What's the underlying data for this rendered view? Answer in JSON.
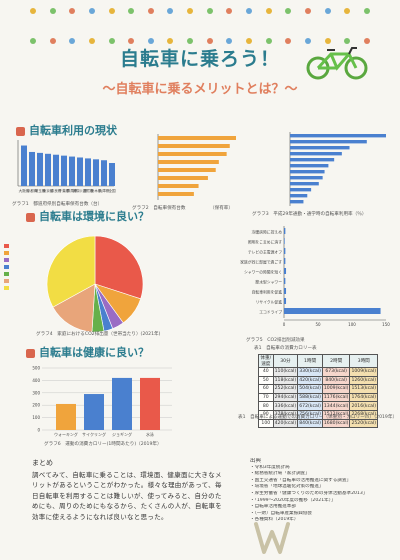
{
  "title": "自転車に乗ろう！",
  "subtitle": "～自転車に乗るメリットとは？～",
  "sections": {
    "usage": "自転車利用の現状",
    "environment": "自転車は環境に良い？",
    "health": "自転車は健康に良い？"
  },
  "colors": {
    "title": "#2b7c8e",
    "subtitle": "#e07f5e",
    "bar_blue": "#4a80cf",
    "bar_orange": "#f0a43c",
    "bar_red": "#e9594a",
    "frame_green": "#66c04a"
  },
  "dot_colors": [
    "#e7b53c",
    "#7cc26b",
    "#e07f5e",
    "#6aa7d8"
  ],
  "icons": [
    "bicycle-icon",
    "section-marker-icon"
  ],
  "captions": {
    "g1": "グラフ1　都道府県別自転車保有台数（台）",
    "g2a": "グラフ2　自転車保有台数",
    "g2b": "（保有率）",
    "g3": "グラフ3　平成29年通勤・通学時の自転車利用率（％）",
    "g4": "グラフ4　家庭におけるCO2排出量（世帯当たり）(2021年)",
    "g5": "グラフ5　CO2排出削減効果",
    "g6": "グラフ6　運動の消費カロリー(1時間あたり)（2019年）",
    "table": "表1　自転車の消費カロリー表",
    "table_note": "表1　自転車による運動での消費カロリー（体重別・カロリー/h）（2019年）"
  },
  "chart_data": [
    {
      "type": "bar",
      "title": "",
      "xlabel": "",
      "ylabel": "",
      "categories": [
        "大阪府",
        "京都府",
        "埼玉県",
        "東京都",
        "奈良県",
        "千葉県",
        "群馬県",
        "神奈川県",
        "滋賀県",
        "栃木県",
        "兵庫県",
        "全国"
      ],
      "values": [
        88,
        74,
        72,
        70,
        68,
        66,
        64,
        62,
        60,
        58,
        56,
        50
      ],
      "ylim": [
        0,
        100
      ]
    },
    {
      "type": "bar",
      "title": "",
      "xlabel": "",
      "ylabel": "",
      "orientation": "horizontal",
      "values": [
        100,
        92,
        88,
        78,
        74,
        64,
        52,
        46
      ],
      "color": "#f0a43c"
    },
    {
      "type": "bar",
      "title": "",
      "xlabel": "",
      "ylabel": "",
      "orientation": "horizontal",
      "values": [
        100,
        80,
        62,
        54,
        46,
        40,
        36,
        34,
        30,
        22,
        18,
        14
      ],
      "color": "#4a80cf"
    },
    {
      "type": "pie",
      "title": "",
      "values": [
        30,
        10,
        4,
        3,
        4,
        16,
        33
      ],
      "colors": [
        "#e9594a",
        "#f0a43c",
        "#9a6cc4",
        "#4a80cf",
        "#66b04a",
        "#e8a57a",
        "#f2dd44"
      ]
    },
    {
      "type": "bar",
      "title": "",
      "xlabel": "",
      "ylabel": "",
      "orientation": "horizontal",
      "categories": [
        "冷暖房時に控えめ",
        "照明をこまめに消す",
        "テレビの主電源オフ",
        "家族が同じ部屋で過ごす",
        "シャワーの時間を短く",
        "節水型シャワー",
        "自転車利用を促進",
        "リサイクル促進",
        "エコドライブ"
      ],
      "values": [
        2,
        1,
        2,
        2,
        3,
        2,
        3,
        3,
        142
      ],
      "xlim": [
        0,
        150
      ],
      "xticks": [
        "0",
        "50",
        "100",
        "150"
      ],
      "color": "#4a80cf"
    },
    {
      "type": "bar",
      "title": "",
      "xlabel": "",
      "ylabel": "",
      "categories": [
        "ウォーキング",
        "サイクリング",
        "ジョギング",
        "水泳"
      ],
      "values": [
        210,
        290,
        420,
        420
      ],
      "ylim": [
        0,
        500
      ],
      "yticks": [
        "0",
        "100",
        "200",
        "300",
        "400",
        "500"
      ],
      "colors": [
        "#f0a43c",
        "#4a80cf",
        "#4a80cf",
        "#e9594a"
      ]
    }
  ],
  "table": {
    "headers": [
      "体重/速度",
      "30分",
      "1時間",
      "2時間",
      "3時間"
    ],
    "rows": [
      [
        "40",
        "110(kcal)",
        "330(kcal)",
        "673(kcal)",
        "1009(kcal)"
      ],
      [
        "50",
        "118(kcal)",
        "420(kcal)",
        "840(kcal)",
        "1260(kcal)"
      ],
      [
        "60",
        "252(kcal)",
        "504(kcal)",
        "1009(kcal)",
        "1513(kcal)"
      ],
      [
        "70",
        "294(kcal)",
        "588(kcal)",
        "1176(kcal)",
        "1764(kcal)"
      ],
      [
        "80",
        "336(kcal)",
        "672(kcal)",
        "1344(kcal)",
        "2016(kcal)"
      ],
      [
        "90",
        "378(kcal)",
        "756(kcal)",
        "1512(kcal)",
        "2268(kcal)"
      ],
      [
        "100",
        "420(kcal)",
        "840(kcal)",
        "1680(kcal)",
        "2520(kcal)"
      ]
    ]
  },
  "summary": {
    "heading": "まとめ",
    "body": "調べてみて、自転車に乗ることは、環境面、健康面に大きなメリットがあるということがわかった。様々な理由があって、毎日自転車を利用することは難しいが、使ってみると、自分のためにも、周りのためにもなるから、たくさんの人が、自転車を効率に使えるようになれば良いなと思った。"
  },
  "refs": {
    "heading": "出典",
    "lines": [
      "・令和3年度統計局",
      "・総務省統計局「家計調査」",
      "・国土交通省「自転車の活用推進に関する調査」",
      "・環境省「地球温暖化対策の推進」",
      "・厚生労働省「健康づくりのための身体活動基準2013」",
      "・「1999～2020年度の推移（2021年）」",
      "・自転車活用推進本部",
      "・（一財）自転車産業振興協会",
      "・各種資料（2019年）"
    ],
    "sign": "W"
  }
}
